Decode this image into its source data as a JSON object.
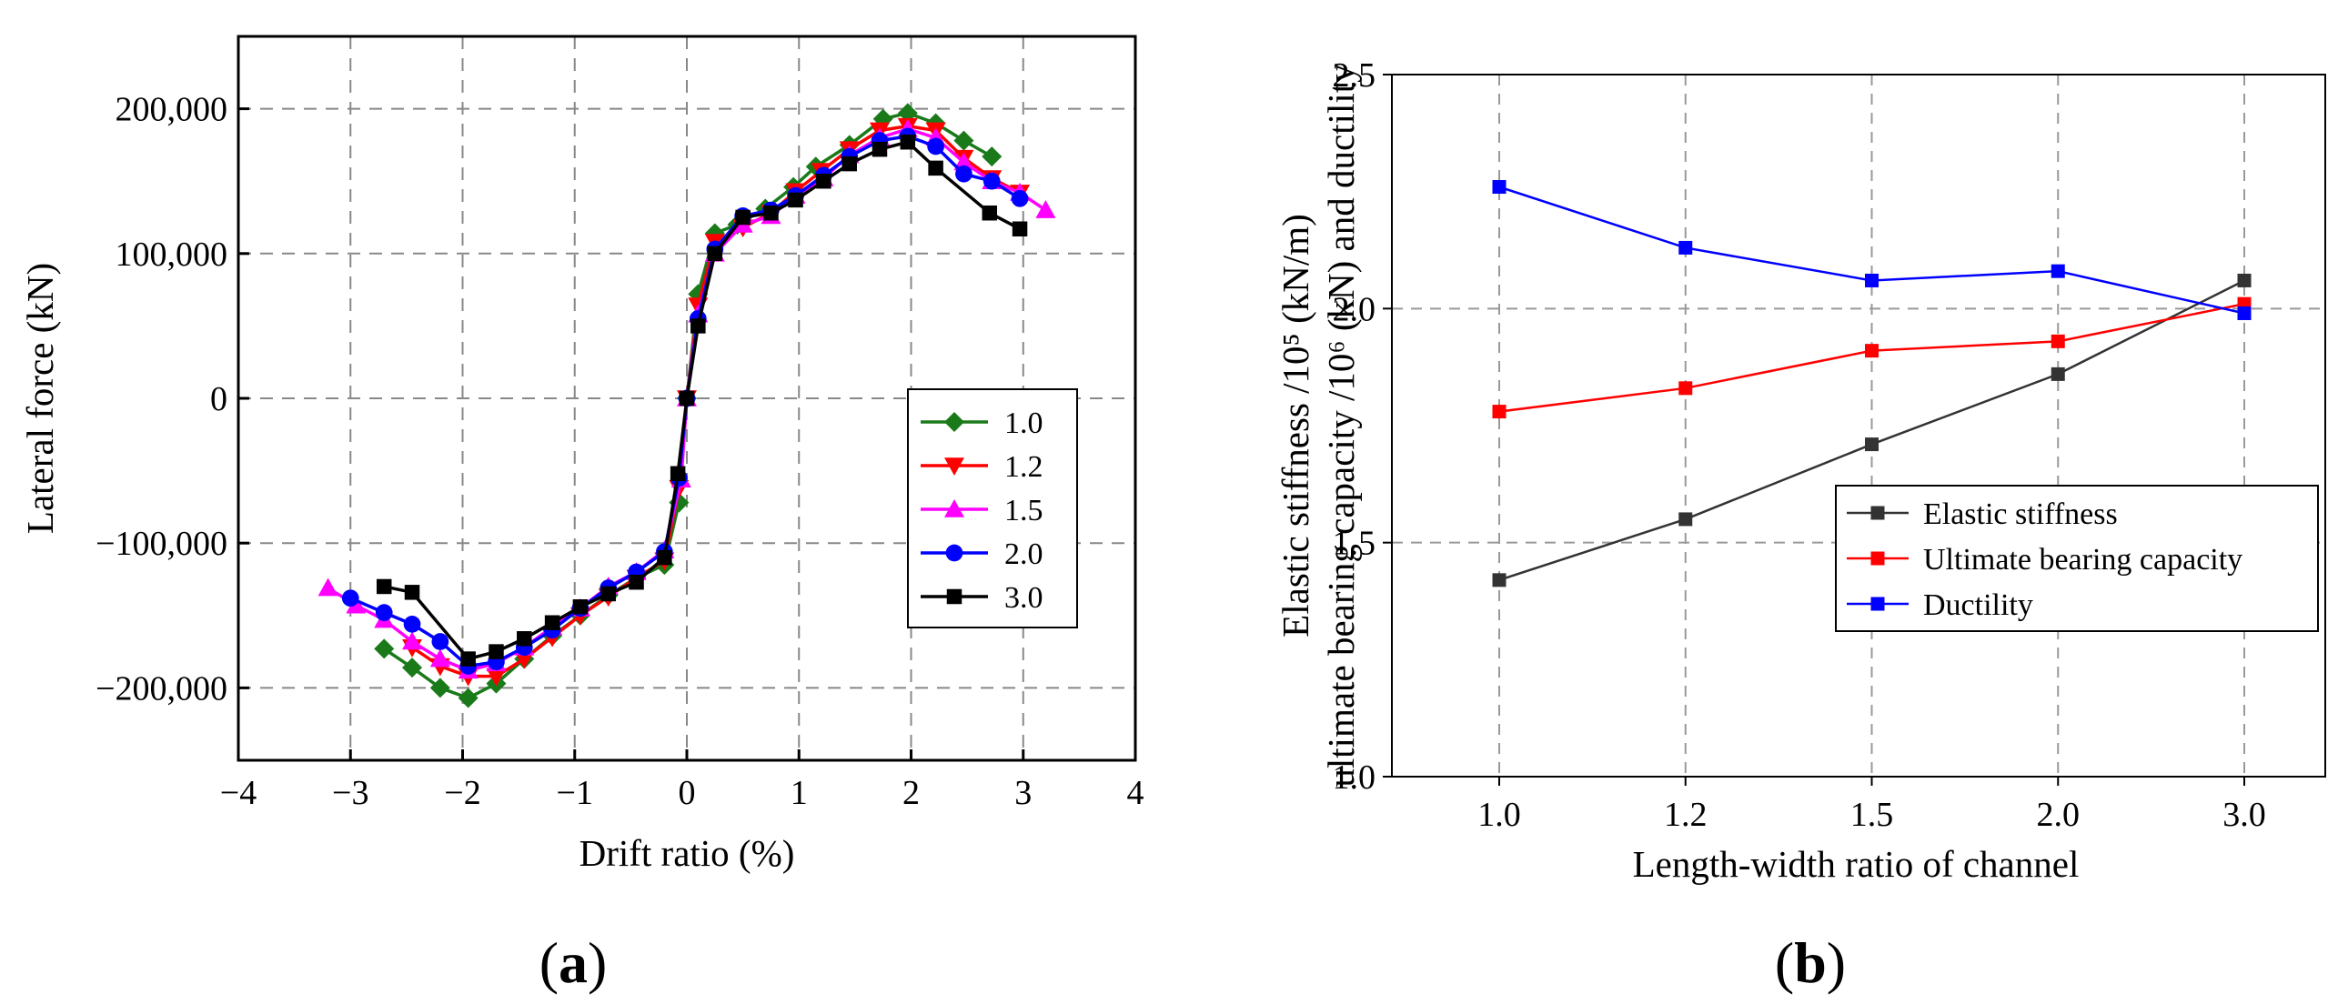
{
  "chart_data": [
    {
      "panel_label": "a",
      "type": "line",
      "xlabel": "Drift ratio (%)",
      "ylabel": "Lateral force (kN)",
      "xlim": [
        -4,
        4
      ],
      "ylim": [
        -250000,
        250000
      ],
      "xticks": [
        -4,
        -3,
        -2,
        -1,
        0,
        1,
        2,
        3,
        4
      ],
      "xtick_labels": [
        "−4",
        "−3",
        "−2",
        "−1",
        "0",
        "1",
        "2",
        "3",
        "4"
      ],
      "yticks": [
        -200000,
        -100000,
        0,
        100000,
        200000
      ],
      "ytick_labels": [
        "−200,000",
        "−100,000",
        "0",
        "100,000",
        "200,000"
      ],
      "grid": true,
      "legend_position": "right",
      "series": [
        {
          "name": "1.0",
          "color": "#1a7a1a",
          "marker": "diamond",
          "points": [
            [
              -2.7,
              -173000
            ],
            [
              -2.45,
              -186000
            ],
            [
              -2.2,
              -200000
            ],
            [
              -1.95,
              -207000
            ],
            [
              -1.7,
              -197000
            ],
            [
              -1.45,
              -180000
            ],
            [
              -1.2,
              -164000
            ],
            [
              -0.95,
              -150000
            ],
            [
              -0.7,
              -136000
            ],
            [
              -0.45,
              -124000
            ],
            [
              -0.2,
              -115000
            ],
            [
              -0.07,
              -72000
            ],
            [
              0,
              0
            ],
            [
              0.1,
              72000
            ],
            [
              0.25,
              114000
            ],
            [
              0.45,
              120000
            ],
            [
              0.7,
              131000
            ],
            [
              0.95,
              146000
            ],
            [
              1.15,
              160000
            ],
            [
              1.45,
              175000
            ],
            [
              1.75,
              193000
            ],
            [
              1.97,
              197000
            ],
            [
              2.22,
              190000
            ],
            [
              2.47,
              178000
            ],
            [
              2.72,
              167000
            ]
          ]
        },
        {
          "name": "1.2",
          "color": "#ff0000",
          "marker": "triangle-down",
          "points": [
            [
              -2.45,
              -172000
            ],
            [
              -2.2,
              -185000
            ],
            [
              -1.95,
              -192000
            ],
            [
              -1.7,
              -192000
            ],
            [
              -1.45,
              -180000
            ],
            [
              -1.2,
              -165000
            ],
            [
              -0.95,
              -150000
            ],
            [
              -0.7,
              -137000
            ],
            [
              -0.45,
              -124000
            ],
            [
              -0.2,
              -112000
            ],
            [
              -0.07,
              -62000
            ],
            [
              0,
              0
            ],
            [
              0.1,
              64000
            ],
            [
              0.25,
              108000
            ],
            [
              0.5,
              118000
            ],
            [
              0.75,
              128000
            ],
            [
              0.97,
              143000
            ],
            [
              1.2,
              157000
            ],
            [
              1.45,
              172000
            ],
            [
              1.72,
              185000
            ],
            [
              1.97,
              188000
            ],
            [
              2.22,
              185000
            ],
            [
              2.47,
              166000
            ],
            [
              2.72,
              152000
            ],
            [
              2.97,
              142000
            ]
          ]
        },
        {
          "name": "1.5",
          "color": "#ff00ff",
          "marker": "triangle-up",
          "points": [
            [
              -3.2,
              -131000
            ],
            [
              -2.95,
              -143000
            ],
            [
              -2.7,
              -153000
            ],
            [
              -2.45,
              -168000
            ],
            [
              -2.2,
              -180000
            ],
            [
              -1.95,
              -188000
            ],
            [
              -1.7,
              -183000
            ],
            [
              -1.45,
              -172000
            ],
            [
              -1.2,
              -158000
            ],
            [
              -0.95,
              -145000
            ],
            [
              -0.7,
              -130000
            ],
            [
              -0.45,
              -120000
            ],
            [
              -0.2,
              -105000
            ],
            [
              -0.05,
              -56000
            ],
            [
              0,
              0
            ],
            [
              0.1,
              58000
            ],
            [
              0.25,
              100000
            ],
            [
              0.5,
              120000
            ],
            [
              0.75,
              126000
            ],
            [
              0.97,
              140000
            ],
            [
              1.22,
              152000
            ],
            [
              1.45,
              168000
            ],
            [
              1.72,
              180000
            ],
            [
              1.97,
              186000
            ],
            [
              2.22,
              180000
            ],
            [
              2.47,
              163000
            ],
            [
              2.72,
              150000
            ],
            [
              2.97,
              142000
            ],
            [
              3.2,
              130000
            ]
          ]
        },
        {
          "name": "2.0",
          "color": "#0000ff",
          "marker": "circle",
          "points": [
            [
              -3.0,
              -138000
            ],
            [
              -2.7,
              -148000
            ],
            [
              -2.45,
              -156000
            ],
            [
              -2.2,
              -168000
            ],
            [
              -1.95,
              -185000
            ],
            [
              -1.7,
              -182000
            ],
            [
              -1.45,
              -172000
            ],
            [
              -1.2,
              -160000
            ],
            [
              -0.95,
              -145000
            ],
            [
              -0.7,
              -131000
            ],
            [
              -0.45,
              -120000
            ],
            [
              -0.2,
              -106000
            ],
            [
              -0.07,
              -55000
            ],
            [
              0,
              0
            ],
            [
              0.1,
              55000
            ],
            [
              0.25,
              103000
            ],
            [
              0.5,
              126000
            ],
            [
              0.75,
              130000
            ],
            [
              0.97,
              140000
            ],
            [
              1.22,
              154000
            ],
            [
              1.45,
              167000
            ],
            [
              1.72,
              178000
            ],
            [
              1.97,
              181000
            ],
            [
              2.22,
              174000
            ],
            [
              2.47,
              155000
            ],
            [
              2.72,
              150000
            ],
            [
              2.97,
              138000
            ]
          ]
        },
        {
          "name": "3.0",
          "color": "#000000",
          "marker": "square",
          "points": [
            [
              -2.7,
              -130000
            ],
            [
              -2.45,
              -134000
            ],
            [
              -1.95,
              -180000
            ],
            [
              -1.7,
              -175000
            ],
            [
              -1.45,
              -166000
            ],
            [
              -1.2,
              -155000
            ],
            [
              -0.95,
              -144000
            ],
            [
              -0.7,
              -135000
            ],
            [
              -0.45,
              -127000
            ],
            [
              -0.2,
              -110000
            ],
            [
              -0.08,
              -52000
            ],
            [
              0,
              0
            ],
            [
              0.1,
              50000
            ],
            [
              0.25,
              100000
            ],
            [
              0.5,
              125000
            ],
            [
              0.75,
              128000
            ],
            [
              0.97,
              137000
            ],
            [
              1.22,
              150000
            ],
            [
              1.45,
              162000
            ],
            [
              1.72,
              172000
            ],
            [
              1.97,
              177000
            ],
            [
              2.22,
              159000
            ],
            [
              2.7,
              128000
            ],
            [
              2.97,
              117000
            ]
          ]
        }
      ]
    },
    {
      "panel_label": "b",
      "type": "line",
      "xlabel": "Length-width ratio of channel",
      "ylabel_line1": "ultimate bearing capacity /10⁶ (kN) and ductility",
      "ylabel_line2": "Elastic stiffness /10⁵ (kN/m)",
      "categories": [
        "1.0",
        "1.2",
        "1.5",
        "2.0",
        "3.0"
      ],
      "ylim": [
        1.0,
        2.5
      ],
      "yticks": [
        1.0,
        1.5,
        2.0,
        2.5
      ],
      "ytick_labels": [
        "1.0",
        "1.5",
        "2.0",
        "2.5"
      ],
      "grid": true,
      "legend_position": "bottom-right",
      "series": [
        {
          "name": "Elastic stiffness",
          "color": "#333333",
          "marker": "square",
          "values": [
            1.42,
            1.55,
            1.71,
            1.86,
            2.06
          ]
        },
        {
          "name": "Ultimate bearing capacity",
          "color": "#ff0000",
          "marker": "square",
          "values": [
            1.78,
            1.83,
            1.91,
            1.93,
            2.01
          ]
        },
        {
          "name": "Ductility",
          "color": "#0000ff",
          "marker": "square",
          "values": [
            2.26,
            2.13,
            2.06,
            2.08,
            1.99
          ]
        }
      ]
    }
  ]
}
